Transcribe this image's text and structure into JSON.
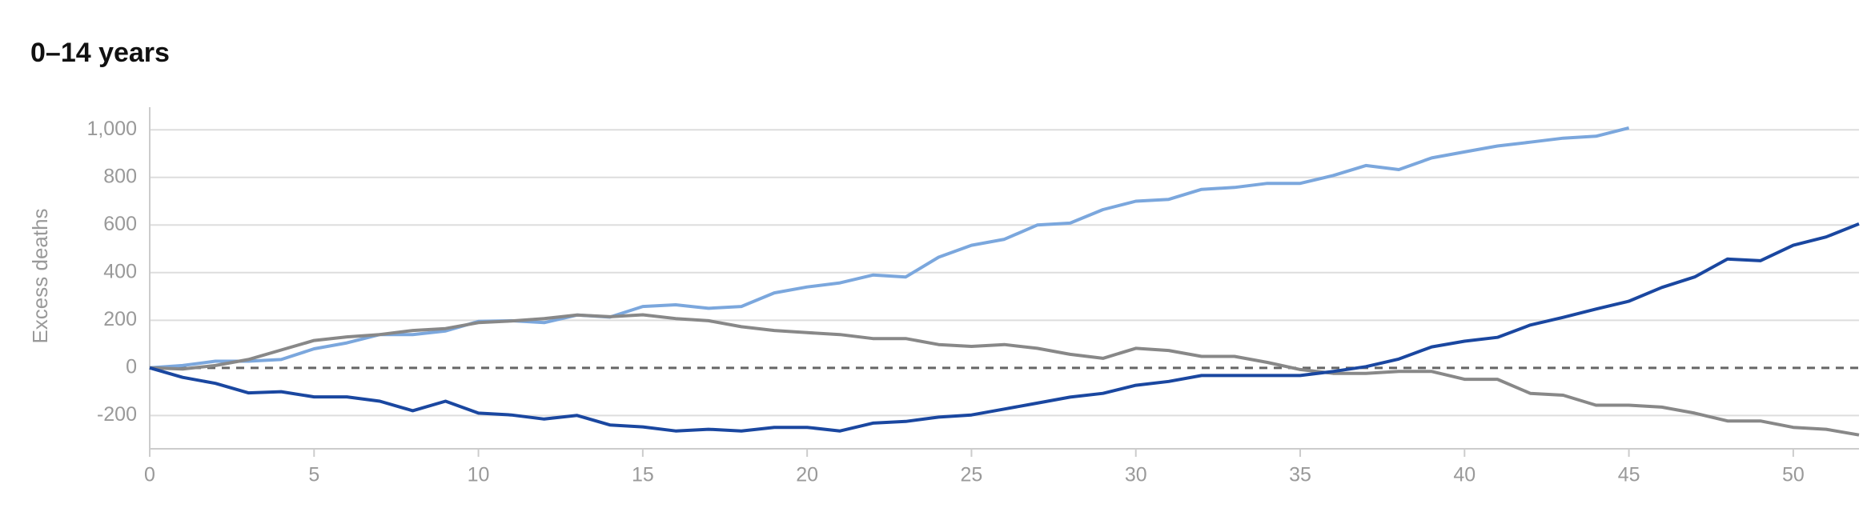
{
  "chart_data": {
    "type": "line",
    "title": "0–14 years",
    "y_label": "Excess deaths",
    "x": [
      0,
      1,
      2,
      3,
      4,
      5,
      6,
      7,
      8,
      9,
      10,
      11,
      12,
      13,
      14,
      15,
      16,
      17,
      18,
      19,
      20,
      21,
      22,
      23,
      24,
      25,
      26,
      27,
      28,
      29,
      30,
      31,
      32,
      33,
      34,
      35,
      36,
      37,
      38,
      39,
      40,
      41,
      42,
      43,
      44,
      45,
      46,
      47,
      48,
      49,
      50,
      51,
      52
    ],
    "series": [
      {
        "color": "#7ba7dd",
        "values": [
          0,
          10,
          28,
          28,
          35,
          80,
          105,
          140,
          140,
          155,
          195,
          198,
          190,
          222,
          213,
          258,
          265,
          250,
          258,
          315,
          340,
          357,
          390,
          382,
          465,
          515,
          540,
          600,
          608,
          665,
          700,
          708,
          750,
          758,
          775,
          775,
          808,
          850,
          833,
          882,
          907,
          932,
          948,
          965,
          973,
          1008,
          null,
          null,
          null,
          null,
          null,
          null,
          null
        ]
      },
      {
        "color": "#888888",
        "values": [
          0,
          -5,
          10,
          35,
          75,
          115,
          130,
          140,
          157,
          165,
          190,
          197,
          207,
          222,
          215,
          223,
          207,
          198,
          173,
          157,
          148,
          140,
          123,
          123,
          98,
          90,
          98,
          82,
          57,
          40,
          82,
          73,
          48,
          48,
          23,
          -7,
          -23,
          -23,
          -15,
          -15,
          -48,
          -48,
          -107,
          -115,
          -157,
          -157,
          -165,
          -190,
          -223,
          -223,
          -250,
          -258,
          -282
        ]
      },
      {
        "color": "#1a47a0",
        "values": [
          0,
          -40,
          -65,
          -105,
          -100,
          -122,
          -122,
          -140,
          -180,
          -140,
          -190,
          -198,
          -215,
          -200,
          -240,
          -248,
          -265,
          -258,
          -265,
          -250,
          -250,
          -265,
          -232,
          -225,
          -207,
          -198,
          -173,
          -148,
          -123,
          -107,
          -73,
          -57,
          -32,
          -32,
          -32,
          -32,
          -15,
          5,
          37,
          88,
          112,
          128,
          180,
          212,
          247,
          280,
          338,
          382,
          457,
          450,
          515,
          550,
          605
        ]
      }
    ],
    "xlim": [
      0,
      52
    ],
    "xticks": [
      0,
      5,
      10,
      15,
      20,
      25,
      30,
      35,
      40,
      45,
      50
    ],
    "ylim": [
      -340,
      1095
    ],
    "yticks": [
      -200,
      0,
      200,
      400,
      600,
      800,
      {
        "value": 1000,
        "label": "1,000"
      }
    ],
    "grid": true,
    "zero_line": "dashed"
  }
}
